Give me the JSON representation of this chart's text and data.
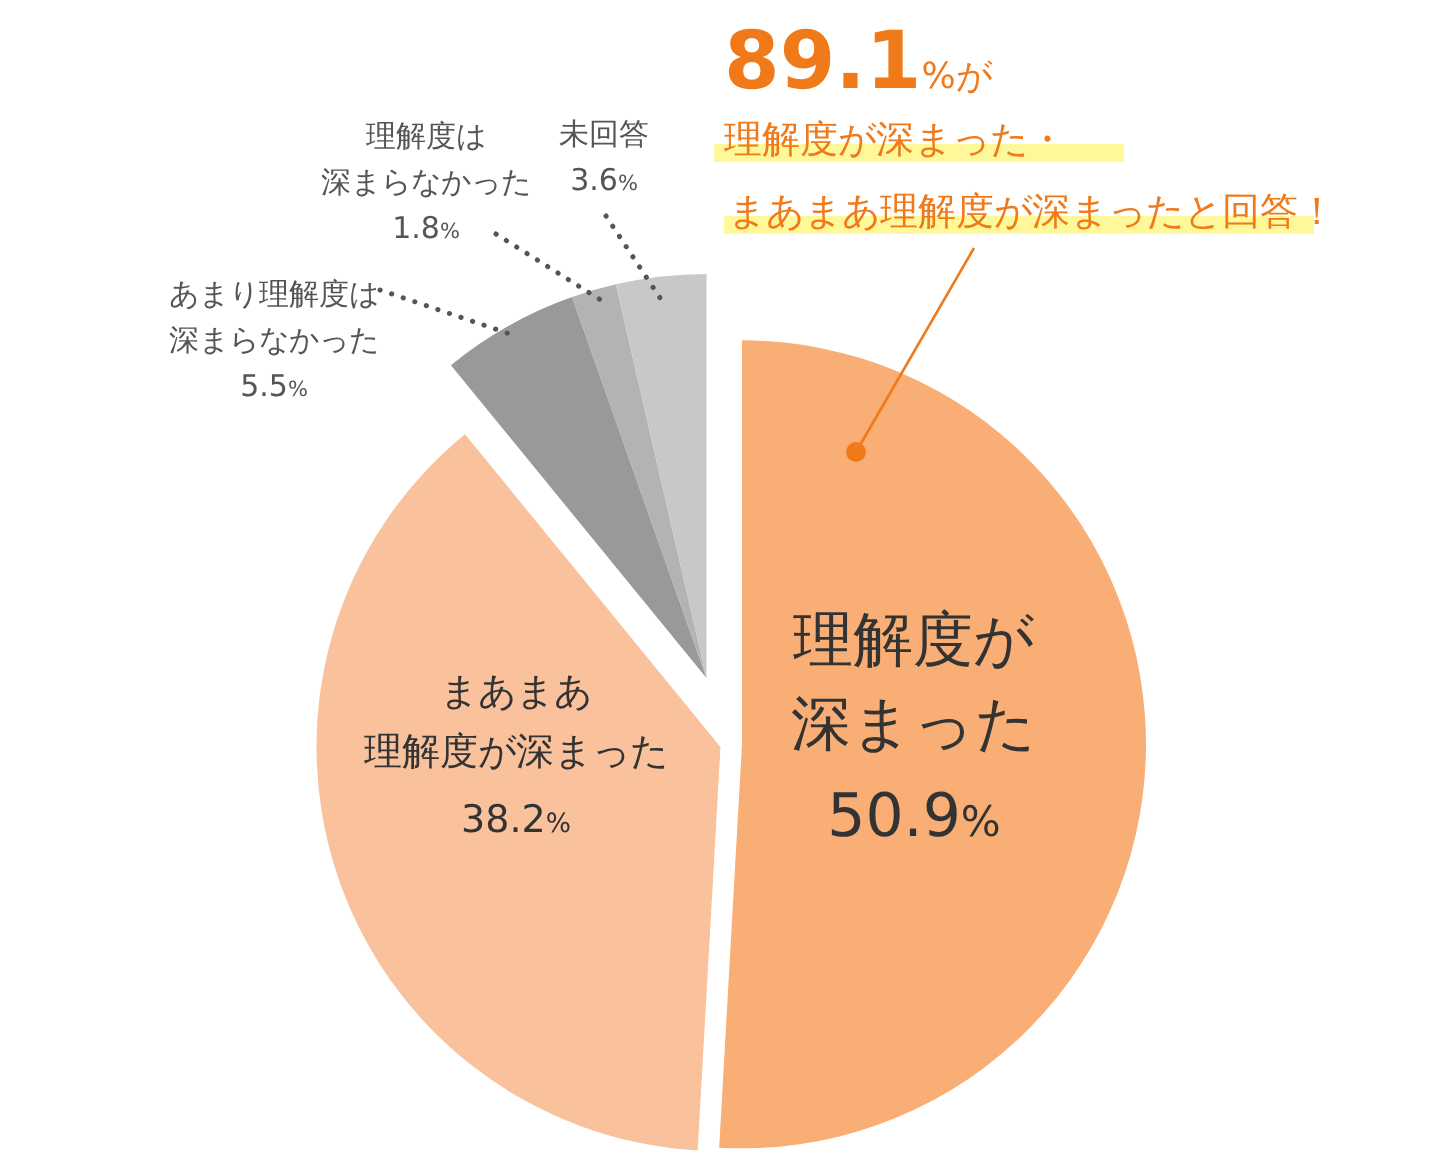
{
  "chart_data": {
    "type": "pie",
    "categories": [
      "理解度が深まった",
      "まあまあ理解度が深まった",
      "あまり理解度は深まらなかった",
      "理解度は深まらなかった",
      "未回答"
    ],
    "values": [
      50.9,
      38.2,
      5.5,
      1.8,
      3.6
    ],
    "colors": [
      "#f8ae74",
      "#f9c29c",
      "#999999",
      "#b3b3b3",
      "#c8c8c8"
    ],
    "value_labels": [
      "50.9%",
      "38.2%",
      "5.5%",
      "1.8%",
      "3.6%"
    ],
    "annotations": [
      "89.1%が",
      "理解度が深まった・",
      "まあまあ理解度が深まったと回答！"
    ],
    "legend": false
  }
}
